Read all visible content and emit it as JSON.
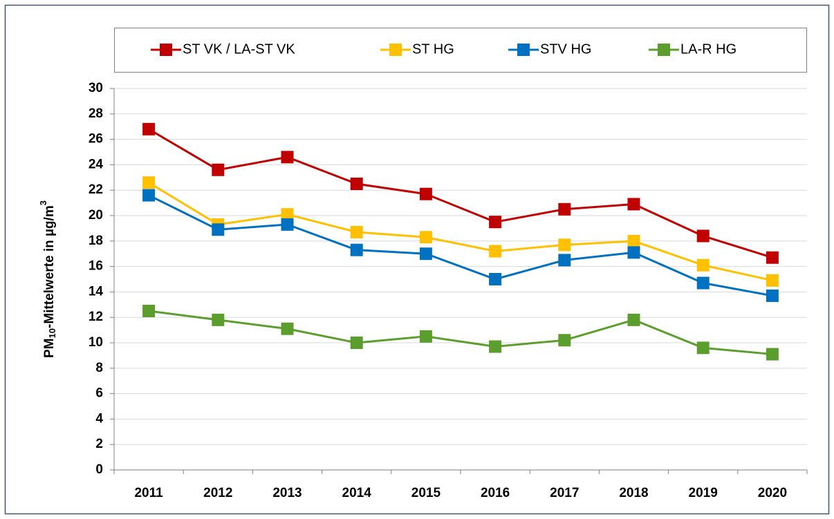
{
  "chart_data": {
    "type": "line",
    "ylabel": [
      "PM",
      "10",
      "-Mittelwerte in µg/m",
      "3"
    ],
    "categories": [
      "2011",
      "2012",
      "2013",
      "2014",
      "2015",
      "2016",
      "2017",
      "2018",
      "2019",
      "2020"
    ],
    "series": [
      {
        "name": "ST VK / LA-ST VK",
        "color": "#c00000",
        "values": [
          26.8,
          23.6,
          24.6,
          22.5,
          21.7,
          19.5,
          20.5,
          20.9,
          18.4,
          16.7
        ]
      },
      {
        "name": "ST HG",
        "color": "#ffc000",
        "values": [
          22.6,
          19.3,
          20.1,
          18.7,
          18.3,
          17.2,
          17.7,
          18.0,
          16.1,
          14.9
        ]
      },
      {
        "name": "STV HG",
        "color": "#0070c0",
        "values": [
          21.6,
          18.9,
          19.3,
          17.3,
          17.0,
          15.0,
          16.5,
          17.1,
          14.7,
          13.7
        ]
      },
      {
        "name": "LA-R HG",
        "color": "#5b9e2d",
        "values": [
          12.5,
          11.8,
          11.1,
          10.0,
          10.5,
          9.7,
          10.2,
          11.8,
          9.6,
          9.1
        ]
      }
    ],
    "ylim": [
      0,
      30
    ],
    "yticks": [
      0,
      2,
      4,
      6,
      8,
      10,
      12,
      14,
      16,
      18,
      20,
      22,
      24,
      26,
      28,
      30
    ],
    "grid": true,
    "legend": "top"
  }
}
